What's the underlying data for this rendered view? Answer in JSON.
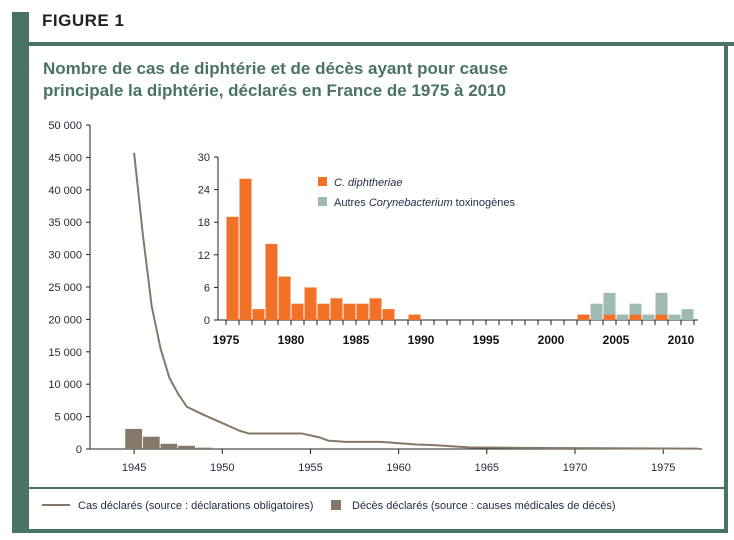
{
  "figure_label": "FIGURE 1",
  "title_line1": "Nombre de cas de diphtérie et de décès ayant pour cause",
  "title_line2": "principale la diphtérie, déclarés en France de 1975 à 2010",
  "chart_data": [
    {
      "type": "line+bar",
      "xlim": [
        1942.5,
        1977.2
      ],
      "ylim": [
        0,
        50000
      ],
      "x_ticks": [
        1945,
        1950,
        1955,
        1960,
        1965,
        1970,
        1975
      ],
      "y_ticks": [
        0,
        5000,
        10000,
        15000,
        20000,
        25000,
        30000,
        35000,
        40000,
        45000,
        50000
      ],
      "y_tick_labels": [
        "0",
        "5 000",
        "10 000",
        "15 000",
        "20 000",
        "25 000",
        "30 000",
        "35 000",
        "40 000",
        "45 000",
        "50 000"
      ],
      "series": [
        {
          "name": "Cas déclarés (source : déclarations obligatoires)",
          "type": "line",
          "color": "#857868",
          "x": [
            1945,
            1945.5,
            1946,
            1946.5,
            1947,
            1947.5,
            1948,
            1949,
            1950,
            1951,
            1951.5,
            1954.5,
            1955.5,
            1956,
            1957,
            1959,
            1961,
            1962,
            1964,
            1968,
            1977
          ],
          "y": [
            45700,
            33000,
            22000,
            15500,
            11000,
            8500,
            6500,
            5200,
            4000,
            2800,
            2400,
            2400,
            1800,
            1300,
            1100,
            1100,
            700,
            600,
            250,
            150,
            50
          ]
        },
        {
          "name": "Décès déclarés (source : causes médicales de décès)",
          "type": "bar",
          "color": "#857868",
          "x": [
            1945,
            1946,
            1947,
            1948,
            1949
          ],
          "y": [
            3100,
            1900,
            800,
            500,
            200
          ]
        }
      ],
      "legend": "bottom"
    },
    {
      "type": "stacked-bar",
      "inset": true,
      "xlim": [
        1975,
        2011
      ],
      "ylim": [
        0,
        30
      ],
      "x_ticks": [
        1975,
        1980,
        1985,
        1990,
        1995,
        2000,
        2005,
        2010
      ],
      "y_ticks": [
        0,
        6,
        12,
        18,
        24,
        30
      ],
      "categories": [
        1975,
        1976,
        1977,
        1978,
        1979,
        1980,
        1981,
        1982,
        1983,
        1984,
        1985,
        1986,
        1987,
        1988,
        1989,
        1990,
        1991,
        1992,
        1993,
        1994,
        1995,
        1996,
        1997,
        1998,
        1999,
        2000,
        2001,
        2002,
        2003,
        2004,
        2005,
        2006,
        2007,
        2008,
        2009,
        2010
      ],
      "series": [
        {
          "name_italic": "C. diphtheriae",
          "color": "#f07127",
          "values": [
            19,
            26,
            2,
            14,
            8,
            3,
            6,
            3,
            4,
            3,
            3,
            4,
            2,
            0,
            1,
            0,
            0,
            0,
            0,
            0,
            0,
            0,
            0,
            0,
            0,
            0,
            0,
            1,
            0,
            1,
            0,
            1,
            0,
            1,
            0,
            0
          ]
        },
        {
          "name_prefix": "Autres ",
          "name_italic": "Corynebacterium",
          "name_suffix": " toxinogènes",
          "color": "#9fbab3",
          "values": [
            0,
            0,
            0,
            0,
            0,
            0,
            0,
            0,
            0,
            0,
            0,
            0,
            0,
            0,
            0,
            0,
            0,
            0,
            0,
            0,
            0,
            0,
            0,
            0,
            0,
            0,
            0,
            0,
            3,
            4,
            1,
            2,
            1,
            4,
            1,
            2
          ]
        }
      ],
      "legend": "top-center"
    }
  ]
}
